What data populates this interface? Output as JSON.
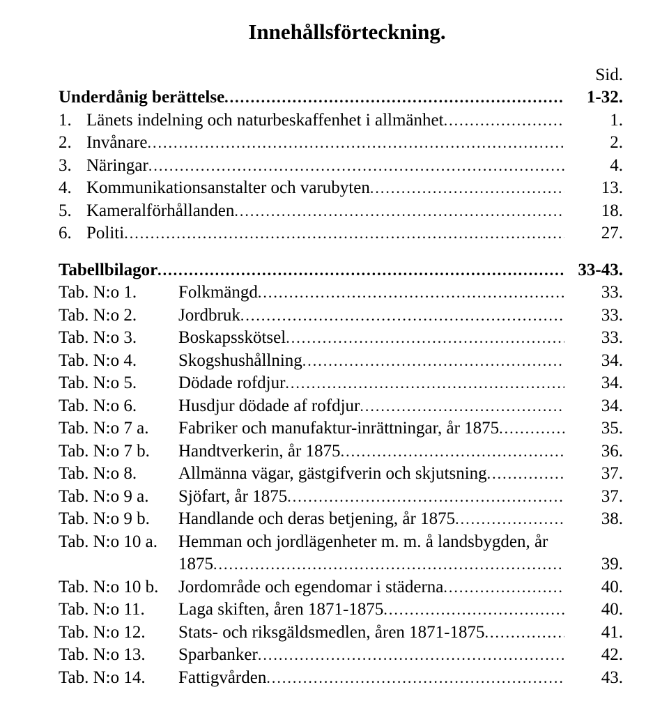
{
  "title": "Innehållsförteckning.",
  "page_col_header": "Sid.",
  "section_underdanig": {
    "heading": {
      "label": "",
      "text": "Underdånig berättelse",
      "page": "1-32.",
      "bold": true
    },
    "items": [
      {
        "label": "1.",
        "text": "Länets indelning och naturbeskaffenhet i allmänhet",
        "page": "1."
      },
      {
        "label": "2.",
        "text": "Invånare",
        "page": "2."
      },
      {
        "label": "3.",
        "text": "Näringar",
        "page": "4."
      },
      {
        "label": "4.",
        "text": "Kommunikationsanstalter och varubyten",
        "page": "13."
      },
      {
        "label": "5.",
        "text": "Kameralförhållanden",
        "page": "18."
      },
      {
        "label": "6.",
        "text": "Politi",
        "page": "27."
      }
    ]
  },
  "section_tabell": {
    "heading": {
      "label": "",
      "text": "Tabellbilagor",
      "page": "33-43.",
      "bold": true
    },
    "items": [
      {
        "label": "Tab. N:o 1.",
        "text": "Folkmängd",
        "page": "33."
      },
      {
        "label": "Tab. N:o 2.",
        "text": "Jordbruk",
        "page": "33."
      },
      {
        "label": "Tab. N:o 3.",
        "text": "Boskapsskötsel",
        "page": "33."
      },
      {
        "label": "Tab. N:o 4.",
        "text": "Skogshushållning",
        "page": "34."
      },
      {
        "label": "Tab. N:o 5.",
        "text": "Dödade rofdjur",
        "page": "34."
      },
      {
        "label": "Tab. N:o 6.",
        "text": "Husdjur dödade af rofdjur",
        "page": "34."
      },
      {
        "label": "Tab. N:o 7 a.",
        "text": "Fabriker och manufaktur-inrättningar, år 1875",
        "page": "35."
      },
      {
        "label": "Tab. N:o 7 b.",
        "text": "Handtverkerin, år 1875",
        "page": "36."
      },
      {
        "label": "Tab. N:o 8.",
        "text": "Allmänna vägar, gästgifverin och skjutsning",
        "page": "37."
      },
      {
        "label": "Tab. N:o 9 a.",
        "text": "Sjöfart, år 1875",
        "page": "37."
      },
      {
        "label": "Tab. N:o 9 b.",
        "text": "Handlande och deras betjening, år 1875",
        "page": "38."
      }
    ],
    "multi_10a": {
      "label": "Tab. N:o 10 a.",
      "line1": "Hemman och jordlägenheter m. m. å landsbygden, år",
      "line2": "1875",
      "page": "39."
    },
    "items_after": [
      {
        "label": "Tab. N:o 10 b.",
        "text": "Jordområde och egendomar i städerna",
        "page": "40."
      },
      {
        "label": "Tab. N:o 11.",
        "text": "Laga skiften, åren 1871-1875",
        "page": "40."
      },
      {
        "label": "Tab. N:o 12.",
        "text": "Stats- och riksgäldsmedlen, åren 1871-1875",
        "page": "41."
      },
      {
        "label": "Tab. N:o 13.",
        "text": "Sparbanker",
        "page": "42."
      },
      {
        "label": "Tab. N:o 14.",
        "text": "Fattigvården",
        "page": "43."
      }
    ]
  }
}
